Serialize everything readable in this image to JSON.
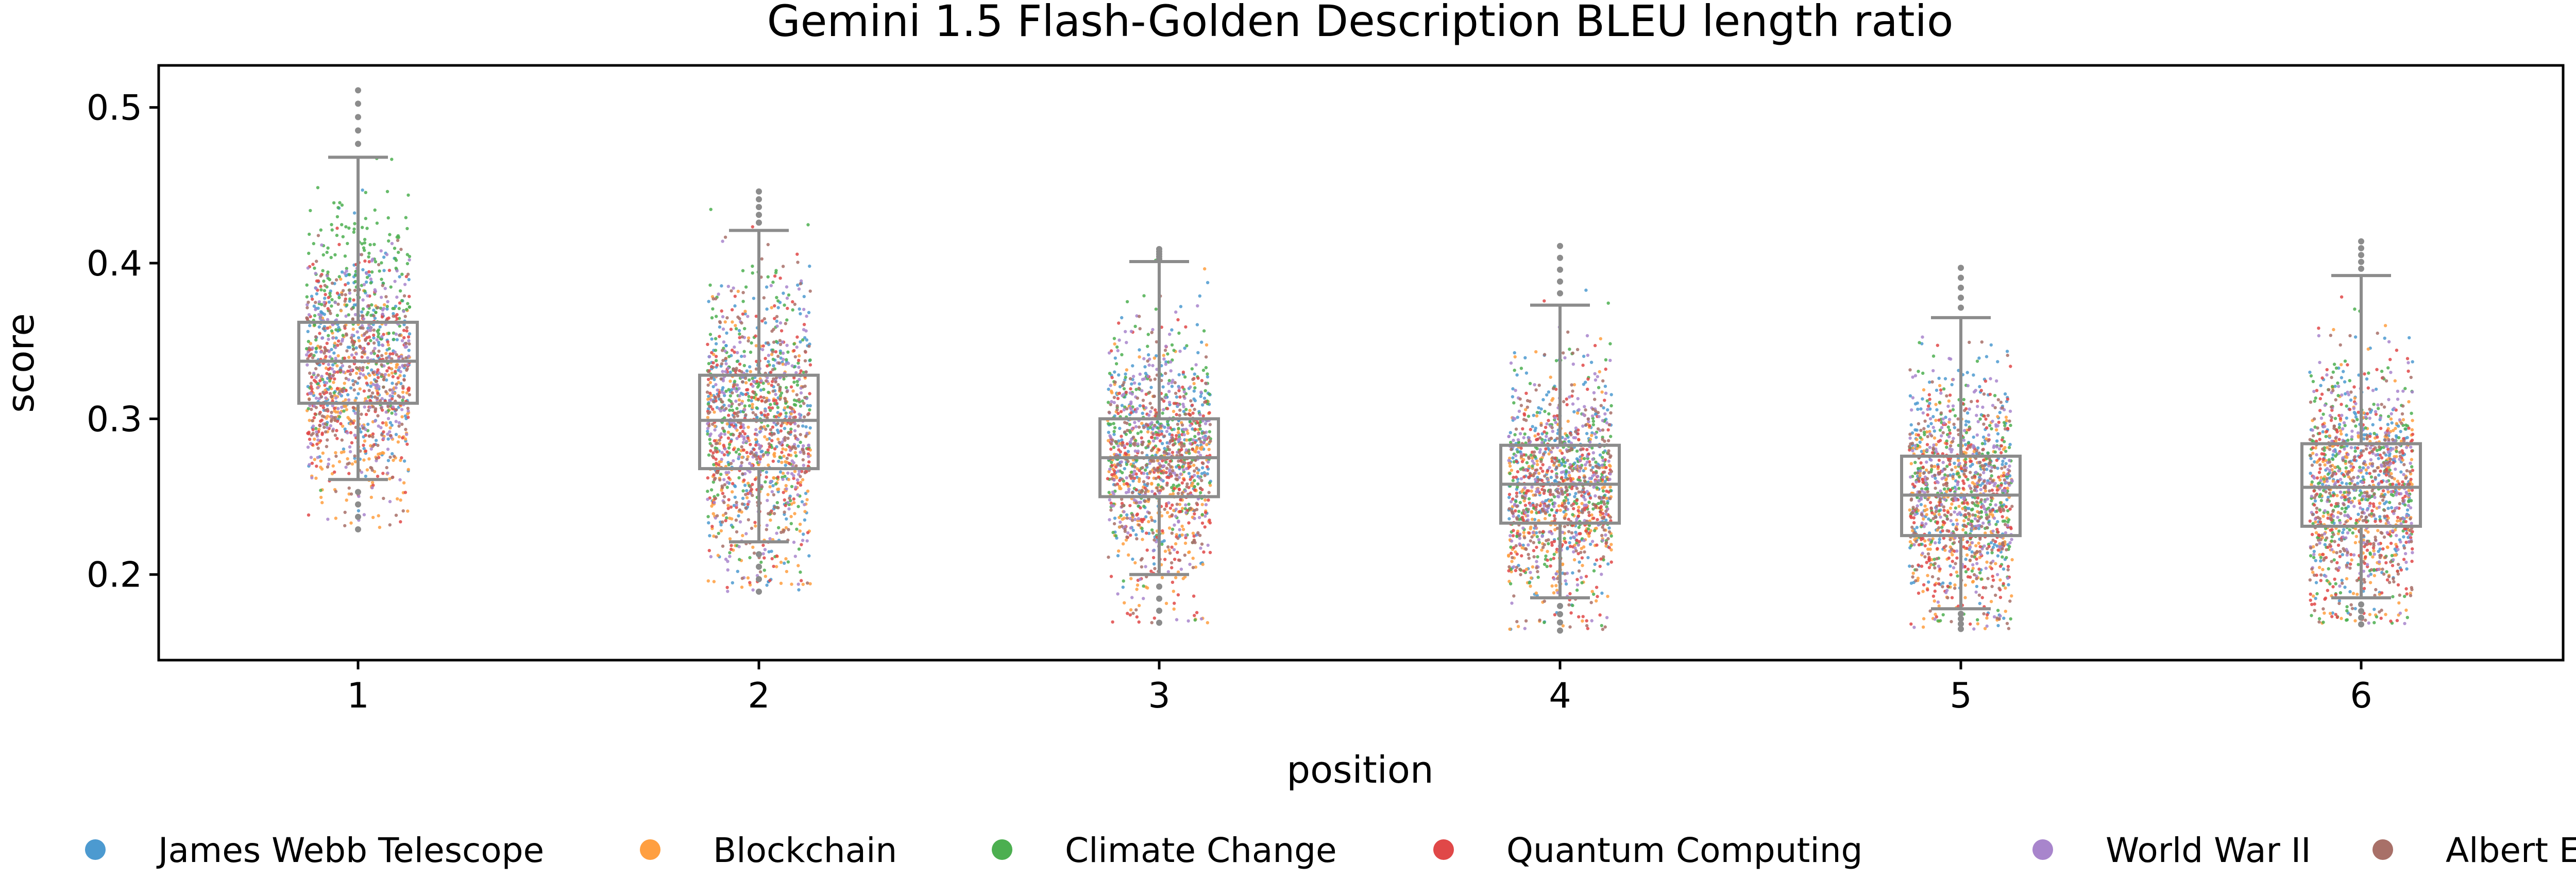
{
  "chart_data": {
    "type": "box-strip",
    "title": "Gemini 1.5 Flash-Golden Description BLEU length ratio",
    "xlabel": "position",
    "ylabel": "score",
    "categories": [
      "1",
      "2",
      "3",
      "4",
      "5",
      "6"
    ],
    "ylim": [
      0.145,
      0.527
    ],
    "yticks": [
      0.2,
      0.3,
      0.4,
      0.5
    ],
    "ytick_labels": [
      "0.2",
      "0.3",
      "0.4",
      "0.5"
    ],
    "grid": false,
    "legend_position": "bottom",
    "box_stats": [
      {
        "position": "1",
        "q1": 0.31,
        "median": 0.337,
        "q3": 0.362,
        "whisker_low": 0.261,
        "whisker_high": 0.468,
        "min": 0.229,
        "max": 0.511
      },
      {
        "position": "2",
        "q1": 0.268,
        "median": 0.299,
        "q3": 0.328,
        "whisker_low": 0.221,
        "whisker_high": 0.421,
        "min": 0.189,
        "max": 0.446
      },
      {
        "position": "3",
        "q1": 0.25,
        "median": 0.275,
        "q3": 0.3,
        "whisker_low": 0.2,
        "whisker_high": 0.401,
        "min": 0.169,
        "max": 0.409
      },
      {
        "position": "4",
        "q1": 0.233,
        "median": 0.258,
        "q3": 0.283,
        "whisker_low": 0.185,
        "whisker_high": 0.373,
        "min": 0.164,
        "max": 0.411
      },
      {
        "position": "5",
        "q1": 0.225,
        "median": 0.251,
        "q3": 0.276,
        "whisker_low": 0.178,
        "whisker_high": 0.365,
        "min": 0.165,
        "max": 0.397
      },
      {
        "position": "6",
        "q1": 0.231,
        "median": 0.256,
        "q3": 0.284,
        "whisker_low": 0.185,
        "whisker_high": 0.392,
        "min": 0.168,
        "max": 0.414
      }
    ],
    "series": [
      {
        "name": "James Webb Telescope",
        "color": "#4c9ad0",
        "mean_by_position": [
          0.34,
          0.305,
          0.285,
          0.265,
          0.255,
          0.265
        ]
      },
      {
        "name": "Blockchain",
        "color": "#ff9f40",
        "mean_by_position": [
          0.31,
          0.275,
          0.255,
          0.245,
          0.238,
          0.248
        ]
      },
      {
        "name": "Climate Change",
        "color": "#4caf50",
        "mean_by_position": [
          0.375,
          0.305,
          0.285,
          0.262,
          0.252,
          0.258
        ]
      },
      {
        "name": "Quantum Computing",
        "color": "#e04848",
        "mean_by_position": [
          0.33,
          0.29,
          0.265,
          0.25,
          0.245,
          0.25
        ]
      },
      {
        "name": "World War II",
        "color": "#a885cc",
        "mean_by_position": [
          0.335,
          0.3,
          0.28,
          0.262,
          0.255,
          0.262
        ]
      },
      {
        "name": "Albert Einstein",
        "color": "#a87068",
        "mean_by_position": [
          0.325,
          0.295,
          0.27,
          0.255,
          0.245,
          0.255
        ]
      }
    ],
    "box_color": "#8c8c8c"
  }
}
